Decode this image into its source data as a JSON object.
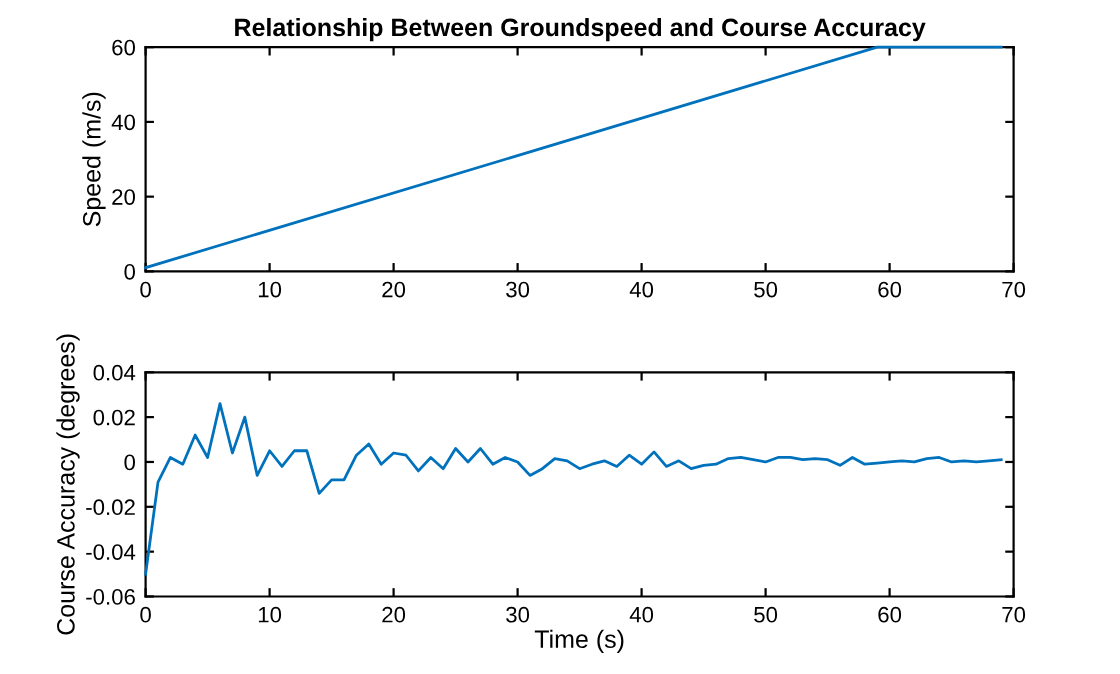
{
  "chart_data": [
    {
      "type": "line",
      "title": "Relationship Between Groundspeed and Course Accuracy",
      "ylabel": "Speed (m/s)",
      "x": [
        0,
        59,
        69
      ],
      "series": [
        {
          "color": "#0072bd",
          "values": [
            1,
            60,
            60
          ]
        }
      ],
      "xlim": [
        0,
        70
      ],
      "xticks": [
        0,
        10,
        20,
        30,
        40,
        50,
        60,
        70
      ],
      "ylim": [
        0,
        60
      ],
      "yticks": [
        0,
        20,
        40,
        60
      ],
      "grid": false,
      "legend": false
    },
    {
      "type": "line",
      "xlabel": "Time (s)",
      "ylabel": "Course Accuracy (degrees)",
      "x": [
        0,
        1,
        2,
        3,
        4,
        5,
        6,
        7,
        8,
        9,
        10,
        11,
        12,
        13,
        14,
        15,
        16,
        17,
        18,
        19,
        20,
        21,
        22,
        23,
        24,
        25,
        26,
        27,
        28,
        29,
        30,
        31,
        32,
        33,
        34,
        35,
        36,
        37,
        38,
        39,
        40,
        41,
        42,
        43,
        44,
        45,
        46,
        47,
        48,
        49,
        50,
        51,
        52,
        53,
        54,
        55,
        56,
        57,
        58,
        59,
        60,
        61,
        62,
        63,
        64,
        65,
        66,
        67,
        68,
        69
      ],
      "series": [
        {
          "color": "#0072bd",
          "values": [
            -0.05,
            -0.009,
            0.002,
            -0.001,
            0.012,
            0.002,
            0.026,
            0.004,
            0.02,
            -0.006,
            0.005,
            -0.002,
            0.005,
            0.005,
            -0.014,
            -0.008,
            -0.008,
            0.003,
            0.008,
            -0.001,
            0.004,
            0.003,
            -0.004,
            0.002,
            -0.003,
            0.006,
            0.0,
            0.006,
            -0.001,
            0.002,
            0.0,
            -0.006,
            -0.003,
            0.0015,
            0.0005,
            -0.003,
            -0.001,
            0.0005,
            -0.002,
            0.003,
            -0.001,
            0.0045,
            -0.002,
            0.0005,
            -0.003,
            -0.0015,
            -0.001,
            0.0015,
            0.002,
            0.001,
            0.0,
            0.002,
            0.002,
            0.001,
            0.0015,
            0.001,
            -0.0015,
            0.002,
            -0.001,
            -0.0005,
            0.0,
            0.0005,
            0.0,
            0.0015,
            0.002,
            0.0,
            0.0005,
            0.0,
            0.0005,
            0.001
          ]
        }
      ],
      "xlim": [
        0,
        70
      ],
      "xticks": [
        0,
        10,
        20,
        30,
        40,
        50,
        60,
        70
      ],
      "ylim": [
        -0.06,
        0.04
      ],
      "yticks": [
        -0.06,
        -0.04,
        -0.02,
        0,
        0.02,
        0.04
      ],
      "grid": false,
      "legend": false
    }
  ]
}
